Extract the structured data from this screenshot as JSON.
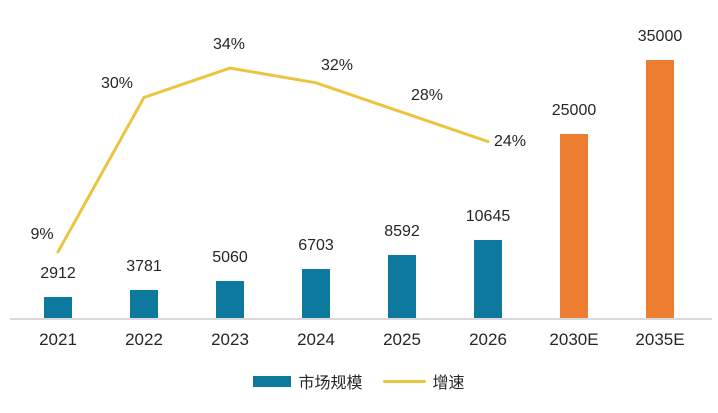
{
  "chart_data": {
    "type": "bar+line",
    "title": "",
    "categories": [
      "2021",
      "2022",
      "2023",
      "2024",
      "2025",
      "2026",
      "2030E",
      "2035E"
    ],
    "series": [
      {
        "name": "市场规模",
        "type": "bar",
        "values": [
          2912,
          3781,
          5060,
          6703,
          8592,
          10645,
          25000,
          35000
        ],
        "bar_colors": [
          "#0E799E",
          "#0E799E",
          "#0E799E",
          "#0E799E",
          "#0E799E",
          "#0E799E",
          "#ED7D31",
          "#ED7D31"
        ]
      },
      {
        "name": "增速",
        "type": "line",
        "values": [
          9,
          30,
          34,
          32,
          28,
          24,
          null,
          null
        ],
        "labels": [
          "9%",
          "30%",
          "34%",
          "32%",
          "28%",
          "24%"
        ],
        "color": "#EBC540",
        "axis": "secondary",
        "unit": "%"
      }
    ],
    "value_axis": {
      "min": 0,
      "max_implied": 35000,
      "visible": false
    },
    "secondary_axis": {
      "min": 0,
      "unit": "%",
      "visible": false
    },
    "grid": false,
    "legend_position": "bottom"
  },
  "legend": {
    "items": [
      {
        "label": "市场规模",
        "marker": "square",
        "color": "#0E799E"
      },
      {
        "label": "增速",
        "marker": "line",
        "color": "#EBC540"
      }
    ]
  },
  "colors": {
    "bar_teal": "#0E799E",
    "bar_orange": "#ED7D31",
    "line_yellow": "#EBC540",
    "axis_line": "#D9D9D9",
    "text": "#262626",
    "background": "#FFFFFF"
  }
}
